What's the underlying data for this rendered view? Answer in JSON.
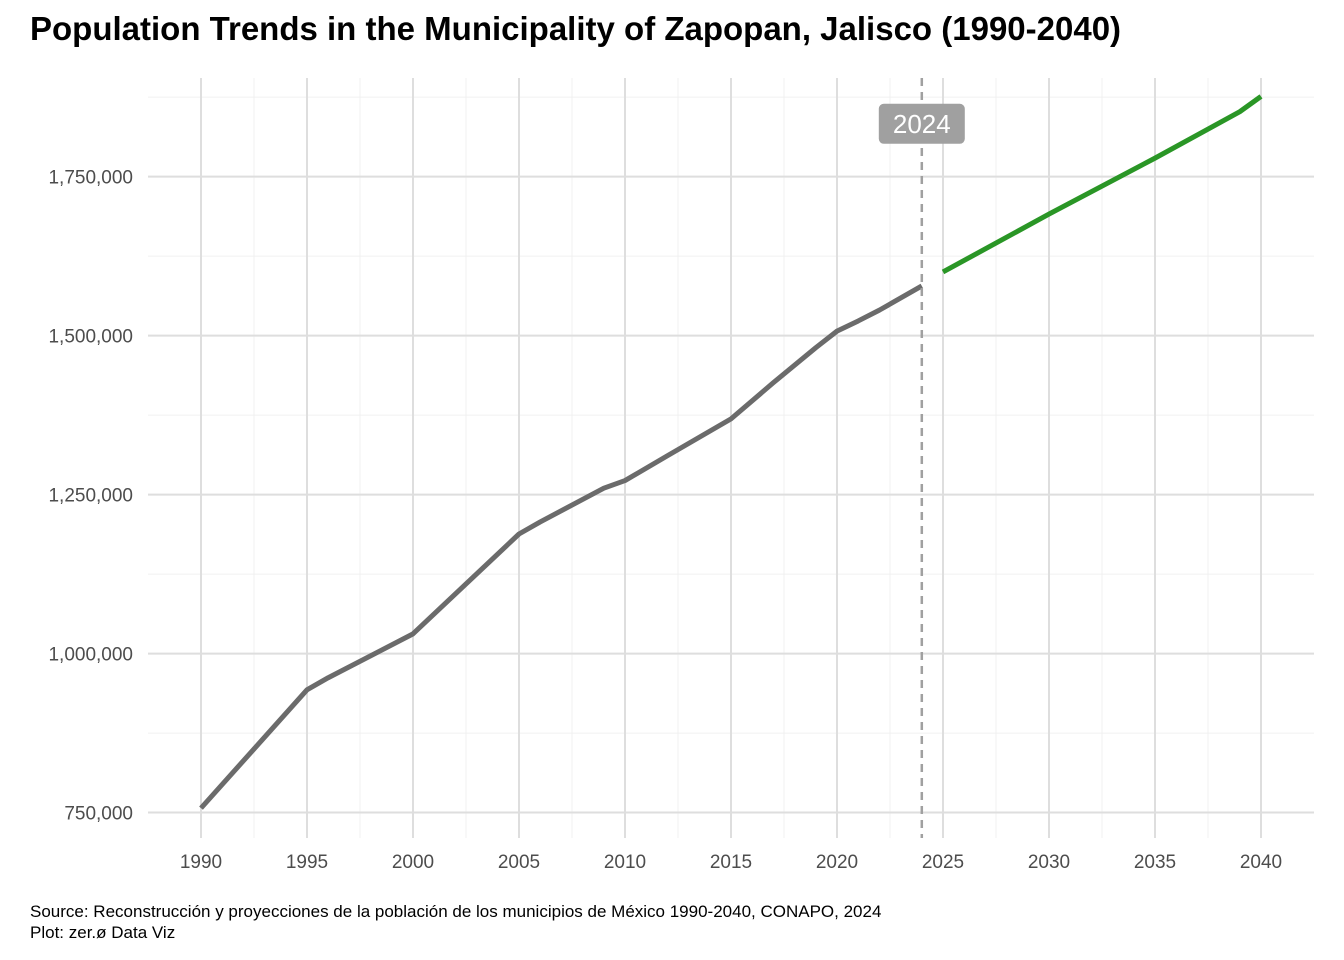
{
  "chart_data": {
    "type": "line",
    "title": "Population Trends in the Municipality of Zapopan, Jalisco (1990-2040)",
    "xlabel": "",
    "ylabel": "",
    "xlim": [
      1987.5,
      2042.5
    ],
    "ylim": [
      710000,
      1905000
    ],
    "x_ticks": [
      1990,
      1995,
      2000,
      2005,
      2010,
      2015,
      2020,
      2025,
      2030,
      2035,
      2040
    ],
    "y_ticks": [
      750000,
      1000000,
      1250000,
      1500000,
      1750000
    ],
    "x_tick_labels": [
      "1990",
      "1995",
      "2000",
      "2005",
      "2010",
      "2015",
      "2020",
      "2025",
      "2030",
      "2035",
      "2040"
    ],
    "y_tick_labels": [
      "750,000",
      "1,000,000",
      "1,250,000",
      "1,500,000",
      "1,750,000"
    ],
    "grid": true,
    "legend": "none",
    "series": [
      {
        "role": "historical",
        "color": "#6b6b6b",
        "points": [
          [
            1990,
            757000
          ],
          [
            1995,
            943000
          ],
          [
            1996,
            962000
          ],
          [
            2000,
            1031000
          ],
          [
            2005,
            1188000
          ],
          [
            2006,
            1207000
          ],
          [
            2009,
            1260000
          ],
          [
            2010,
            1272000
          ],
          [
            2012,
            1311000
          ],
          [
            2015,
            1369000
          ],
          [
            2017,
            1426000
          ],
          [
            2019,
            1481000
          ],
          [
            2020,
            1507000
          ],
          [
            2021,
            1523000
          ],
          [
            2022,
            1540000
          ],
          [
            2024,
            1578000
          ]
        ]
      },
      {
        "role": "projection",
        "color": "#2a9626",
        "points": [
          [
            2025,
            1600000
          ],
          [
            2030,
            1691000
          ],
          [
            2035,
            1779000
          ],
          [
            2039,
            1852000
          ],
          [
            2040,
            1876000
          ]
        ]
      }
    ],
    "annotations": [
      {
        "type": "vline",
        "x": 2024,
        "style": "dashed",
        "color": "#a0a0a0",
        "label": "2024",
        "label_y": 1833000
      }
    ]
  },
  "caption": {
    "source": "Source: Reconstrucción y proyecciones de la población de los municipios de México 1990-2040, CONAPO, 2024",
    "credit": "Plot: zer.ø Data Viz"
  }
}
